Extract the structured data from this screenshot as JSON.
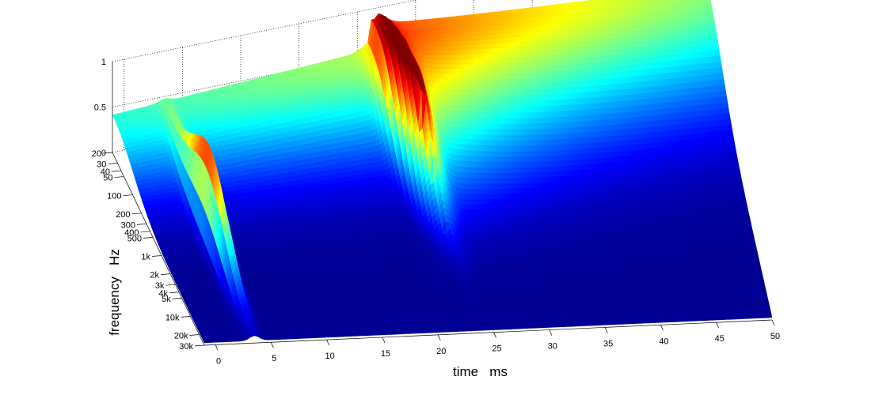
{
  "chart_data": {
    "type": "surface",
    "title": "",
    "x_axis": {
      "label": "time   ms",
      "range": [
        -1,
        50
      ],
      "ticks": [
        0,
        5,
        10,
        15,
        20,
        25,
        30,
        35,
        40,
        45,
        50
      ],
      "tick_labels": [
        "0",
        "5",
        "10",
        "15",
        "20",
        "25",
        "30",
        "35",
        "40",
        "45",
        "50"
      ]
    },
    "y_axis": {
      "label": "frequency   Hz",
      "scale": "log",
      "range": [
        20,
        30000
      ],
      "ticks": [
        20,
        30,
        40,
        50,
        100,
        200,
        300,
        400,
        500,
        1000,
        2000,
        3000,
        4000,
        5000,
        10000,
        20000,
        30000
      ],
      "tick_labels": [
        "20",
        "30",
        "40",
        "50",
        "100",
        "200",
        "300",
        "400",
        "500",
        "1k",
        "2k",
        "3k",
        "4k",
        "5k",
        "10k",
        "20k",
        "30k"
      ]
    },
    "z_axis": {
      "range": [
        0,
        1
      ],
      "ticks": [
        0,
        0.5,
        1
      ],
      "tick_labels": [
        "0",
        "0.5",
        "1"
      ]
    },
    "colormap": "jet",
    "grid": true,
    "features": [
      {
        "description": "narrow early impulse",
        "time_ms": 3.5,
        "freq_range_hz": [
          20,
          30000
        ],
        "peak_height": 0.85
      },
      {
        "description": "main ridge",
        "time_ms": 21.5,
        "freq_range_hz": [
          20,
          2000
        ],
        "peak_height": 1.0
      },
      {
        "description": "low-frequency plateau",
        "time_range_ms": [
          -1,
          50
        ],
        "freq_range_hz": [
          20,
          50
        ],
        "height": 0.75
      }
    ]
  }
}
